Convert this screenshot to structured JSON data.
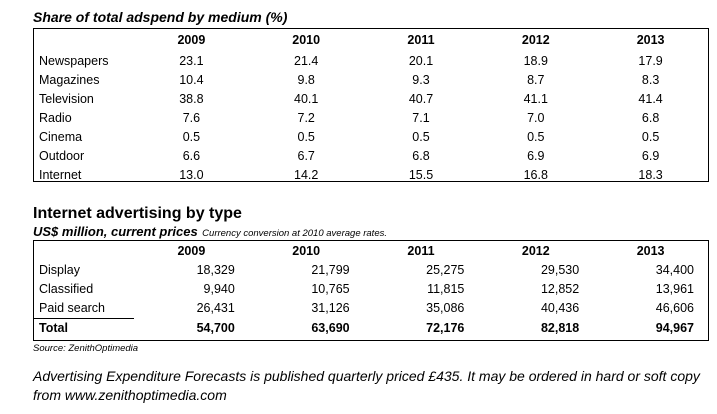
{
  "table1": {
    "title": "Share of total adspend by medium (%)",
    "years": [
      "2009",
      "2010",
      "2011",
      "2012",
      "2013"
    ],
    "rows": [
      {
        "label": "Newspapers",
        "values": [
          "23.1",
          "21.4",
          "20.1",
          "18.9",
          "17.9"
        ]
      },
      {
        "label": "Magazines",
        "values": [
          "10.4",
          "9.8",
          "9.3",
          "8.7",
          "8.3"
        ]
      },
      {
        "label": "Television",
        "values": [
          "38.8",
          "40.1",
          "40.7",
          "41.1",
          "41.4"
        ]
      },
      {
        "label": "Radio",
        "values": [
          "7.6",
          "7.2",
          "7.1",
          "7.0",
          "6.8"
        ]
      },
      {
        "label": "Cinema",
        "values": [
          "0.5",
          "0.5",
          "0.5",
          "0.5",
          "0.5"
        ]
      },
      {
        "label": "Outdoor",
        "values": [
          "6.6",
          "6.7",
          "6.8",
          "6.9",
          "6.9"
        ]
      },
      {
        "label": "Internet",
        "values": [
          "13.0",
          "14.2",
          "15.5",
          "16.8",
          "18.3"
        ]
      }
    ]
  },
  "table2": {
    "title": "Internet advertising by type",
    "subtitle": "US$ million, current prices",
    "note": "Currency conversion at 2010 average rates.",
    "years": [
      "2009",
      "2010",
      "2011",
      "2012",
      "2013"
    ],
    "rows": [
      {
        "label": "Display",
        "values": [
          "18,329",
          "21,799",
          "25,275",
          "29,530",
          "34,400"
        ]
      },
      {
        "label": "Classified",
        "values": [
          "9,940",
          "10,765",
          "11,815",
          "12,852",
          "13,961"
        ]
      },
      {
        "label": "Paid search",
        "values": [
          "26,431",
          "31,126",
          "35,086",
          "40,436",
          "46,606"
        ]
      }
    ],
    "total": {
      "label": "Total",
      "values": [
        "54,700",
        "63,690",
        "72,176",
        "82,818",
        "94,967"
      ]
    }
  },
  "source": "Source: ZenithOptimedia",
  "footnote": "Advertising Expenditure Forecasts is published quarterly priced £435. It may be ordered in hard or soft copy from www.zenithoptimedia.com"
}
